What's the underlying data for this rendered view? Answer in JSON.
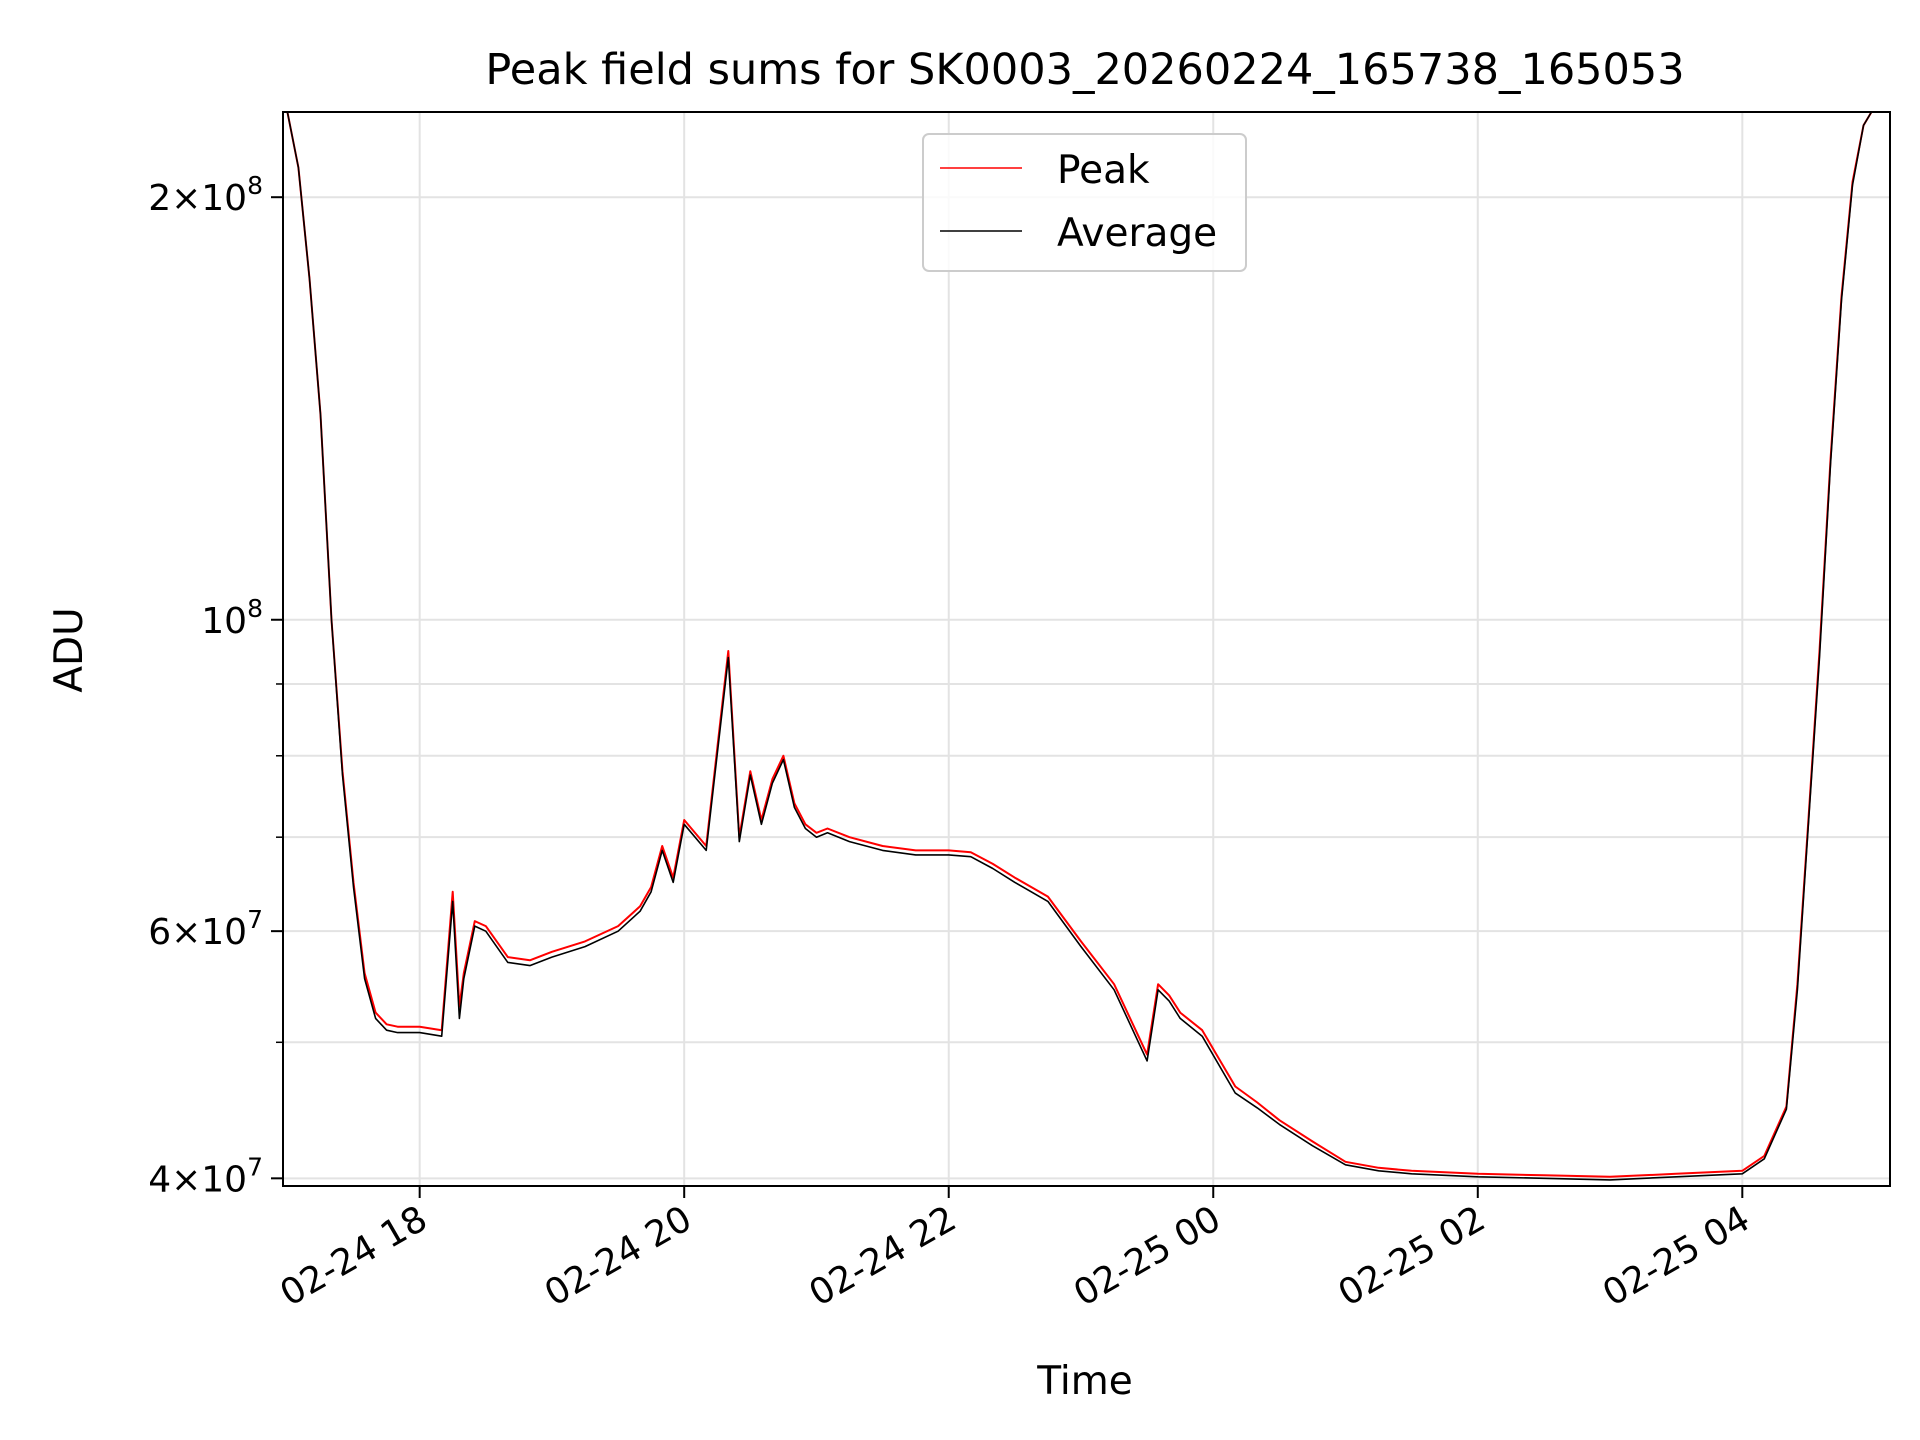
{
  "chart_data": {
    "type": "line",
    "title": "Peak field sums for SK0003_20260224_165738_165053",
    "xlabel": "Time",
    "ylabel": "ADU",
    "yscale": "log",
    "xlim": [
      "2026-02-24 16:58",
      "2026-02-25 05:07"
    ],
    "ylim": [
      39500000,
      230000000
    ],
    "grid": true,
    "legend_position": "top-center",
    "x_ticks": [
      {
        "value": "2026-02-24 18:00",
        "label": "02-24 18"
      },
      {
        "value": "2026-02-24 20:00",
        "label": "02-24 20"
      },
      {
        "value": "2026-02-24 22:00",
        "label": "02-24 22"
      },
      {
        "value": "2026-02-25 00:00",
        "label": "02-25 00"
      },
      {
        "value": "2026-02-25 02:00",
        "label": "02-25 02"
      },
      {
        "value": "2026-02-25 04:00",
        "label": "02-25 04"
      }
    ],
    "y_ticks": [
      {
        "value": 40000000,
        "base": "4",
        "exp": "7"
      },
      {
        "value": 60000000,
        "base": "6",
        "exp": "7"
      },
      {
        "value": 100000000,
        "base": "",
        "exp": "8"
      },
      {
        "value": 200000000,
        "base": "2",
        "exp": "8"
      }
    ],
    "y_minor_ticks": [
      50000000,
      70000000,
      80000000,
      90000000
    ],
    "x": [
      "2026-02-24 17:00",
      "2026-02-24 17:05",
      "2026-02-24 17:10",
      "2026-02-24 17:15",
      "2026-02-24 17:20",
      "2026-02-24 17:25",
      "2026-02-24 17:30",
      "2026-02-24 17:35",
      "2026-02-24 17:40",
      "2026-02-24 17:45",
      "2026-02-24 17:50",
      "2026-02-24 18:00",
      "2026-02-24 18:10",
      "2026-02-24 18:15",
      "2026-02-24 18:18",
      "2026-02-24 18:20",
      "2026-02-24 18:25",
      "2026-02-24 18:30",
      "2026-02-24 18:40",
      "2026-02-24 18:50",
      "2026-02-24 19:00",
      "2026-02-24 19:15",
      "2026-02-24 19:30",
      "2026-02-24 19:40",
      "2026-02-24 19:45",
      "2026-02-24 19:50",
      "2026-02-24 19:55",
      "2026-02-24 20:00",
      "2026-02-24 20:10",
      "2026-02-24 20:20",
      "2026-02-24 20:25",
      "2026-02-24 20:30",
      "2026-02-24 20:35",
      "2026-02-24 20:40",
      "2026-02-24 20:45",
      "2026-02-24 20:50",
      "2026-02-24 20:55",
      "2026-02-24 21:00",
      "2026-02-24 21:05",
      "2026-02-24 21:15",
      "2026-02-24 21:30",
      "2026-02-24 21:45",
      "2026-02-24 22:00",
      "2026-02-24 22:10",
      "2026-02-24 22:20",
      "2026-02-24 22:30",
      "2026-02-24 22:45",
      "2026-02-24 23:00",
      "2026-02-24 23:15",
      "2026-02-24 23:30",
      "2026-02-24 23:35",
      "2026-02-24 23:40",
      "2026-02-24 23:45",
      "2026-02-24 23:55",
      "2026-02-25 00:10",
      "2026-02-25 00:20",
      "2026-02-25 00:30",
      "2026-02-25 00:45",
      "2026-02-25 01:00",
      "2026-02-25 01:15",
      "2026-02-25 01:30",
      "2026-02-25 02:00",
      "2026-02-25 02:30",
      "2026-02-25 03:00",
      "2026-02-25 03:30",
      "2026-02-25 04:00",
      "2026-02-25 04:10",
      "2026-02-25 04:20",
      "2026-02-25 04:25",
      "2026-02-25 04:30",
      "2026-02-25 04:35",
      "2026-02-25 04:40",
      "2026-02-25 04:45",
      "2026-02-25 04:50",
      "2026-02-25 04:55",
      "2026-02-25 05:00",
      "2026-02-25 05:05"
    ],
    "series": [
      {
        "name": "Peak",
        "color": "#ff0000",
        "values": [
          230000000,
          210000000,
          175000000,
          140000000,
          100000000,
          78000000,
          65000000,
          56000000,
          52500000,
          51500000,
          51300000,
          51300000,
          51000000,
          64000000,
          53000000,
          56000000,
          61000000,
          60500000,
          57500000,
          57200000,
          58000000,
          59000000,
          60500000,
          62500000,
          64500000,
          69000000,
          65500000,
          72000000,
          69000000,
          95000000,
          70000000,
          78000000,
          72000000,
          77000000,
          80000000,
          74000000,
          71500000,
          70500000,
          71000000,
          70000000,
          69000000,
          68500000,
          68500000,
          68300000,
          67000000,
          65500000,
          63500000,
          59000000,
          55000000,
          49000000,
          55000000,
          54000000,
          52500000,
          51000000,
          46500000,
          45300000,
          44000000,
          42500000,
          41100000,
          40700000,
          40500000,
          40300000,
          40200000,
          40100000,
          40300000,
          40500000,
          41500000,
          45000000,
          55000000,
          72000000,
          95000000,
          130000000,
          170000000,
          205000000,
          225000000,
          232000000,
          232000000
        ]
      },
      {
        "name": "Average",
        "color": "#000000",
        "values": [
          230000000,
          210000000,
          175000000,
          140000000,
          100000000,
          77500000,
          64500000,
          55500000,
          52000000,
          51000000,
          50800000,
          50800000,
          50500000,
          63000000,
          52000000,
          55500000,
          60500000,
          60000000,
          57000000,
          56700000,
          57500000,
          58500000,
          60000000,
          62000000,
          64000000,
          68500000,
          65000000,
          71500000,
          68500000,
          94000000,
          69500000,
          77500000,
          71500000,
          76500000,
          79500000,
          73500000,
          71000000,
          70000000,
          70500000,
          69500000,
          68500000,
          68000000,
          68000000,
          67800000,
          66500000,
          65000000,
          63000000,
          58500000,
          54500000,
          48500000,
          54500000,
          53500000,
          52000000,
          50500000,
          46000000,
          44900000,
          43700000,
          42200000,
          40900000,
          40500000,
          40300000,
          40100000,
          40000000,
          39900000,
          40100000,
          40300000,
          41300000,
          44800000,
          54500000,
          71500000,
          94000000,
          129000000,
          169000000,
          204000000,
          225000000,
          232000000,
          232000000
        ]
      }
    ]
  }
}
